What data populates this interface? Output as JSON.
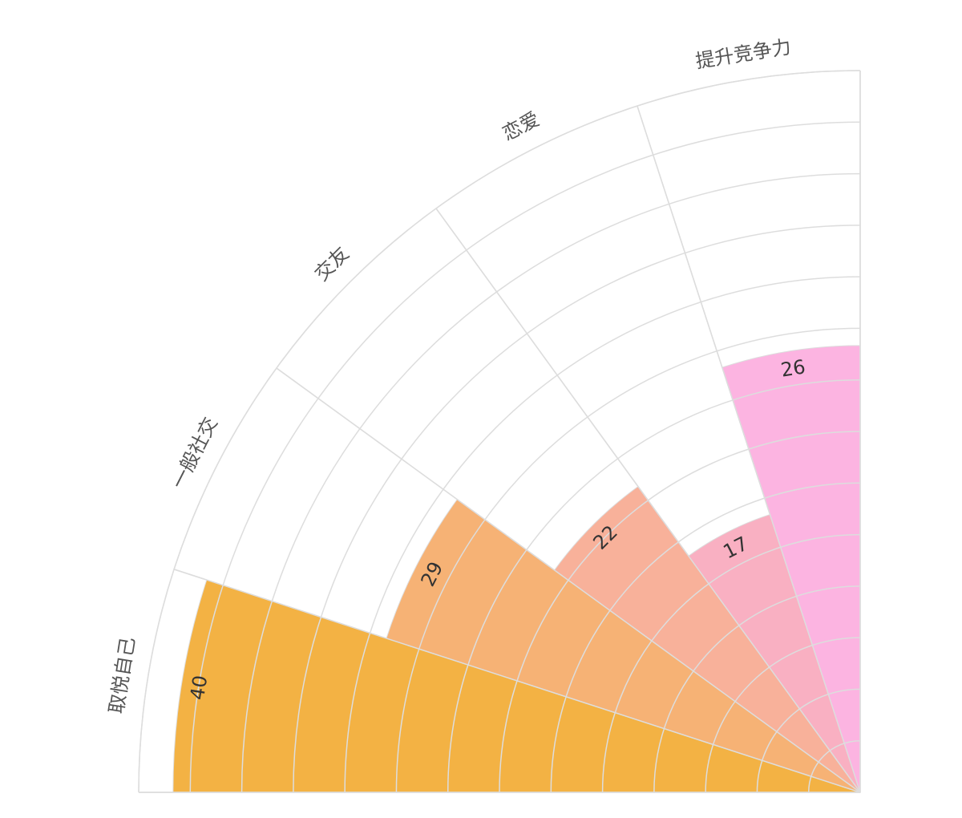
{
  "chart_data": {
    "type": "polar-bar",
    "categories": [
      "取悦自己",
      "一般社交",
      "交友",
      "恋爱",
      "提升竞争力"
    ],
    "values": [
      40,
      29,
      22,
      17,
      26
    ],
    "colors": [
      "#F3B244",
      "#F6B275",
      "#F8B19A",
      "#F9B0C2",
      "#FCB4E1"
    ],
    "rlim": [
      0,
      42
    ]
  }
}
